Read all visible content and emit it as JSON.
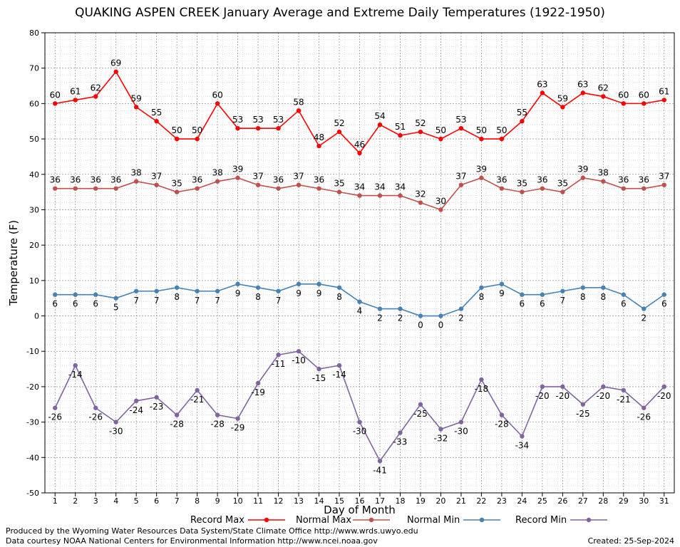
{
  "chart_data": {
    "type": "line",
    "title": "QUAKING ASPEN CREEK January Average and Extreme Daily Temperatures (1922-1950)",
    "xlabel": "Day of Month",
    "ylabel": "Temperature (F)",
    "ylim": [
      -50,
      80
    ],
    "yticks": [
      -50,
      -40,
      -30,
      -20,
      -10,
      0,
      10,
      20,
      30,
      40,
      50,
      60,
      70,
      80
    ],
    "x": [
      1,
      2,
      3,
      4,
      5,
      6,
      7,
      8,
      9,
      10,
      11,
      12,
      13,
      14,
      15,
      16,
      17,
      18,
      19,
      20,
      21,
      22,
      23,
      24,
      25,
      26,
      27,
      28,
      29,
      30,
      31
    ],
    "grid": true,
    "legend_position": "bottom",
    "series": [
      {
        "name": "Record Max",
        "color": "#ff0000",
        "label_pos": "above",
        "values": [
          60,
          61,
          62,
          69,
          59,
          55,
          50,
          50,
          60,
          53,
          53,
          53,
          58,
          48,
          52,
          46,
          54,
          51,
          52,
          50,
          53,
          50,
          50,
          55,
          63,
          59,
          63,
          62,
          60,
          60,
          61
        ]
      },
      {
        "name": "Normal Max",
        "color": "#c0504d",
        "label_pos": "above",
        "values": [
          36,
          36,
          36,
          36,
          38,
          37,
          35,
          36,
          38,
          39,
          37,
          36,
          37,
          36,
          35,
          34,
          34,
          34,
          32,
          30,
          37,
          39,
          36,
          35,
          36,
          35,
          39,
          38,
          36,
          36,
          37
        ]
      },
      {
        "name": "Normal Min",
        "color": "#4682b4",
        "label_pos": "below",
        "values": [
          6,
          6,
          6,
          5,
          7,
          7,
          8,
          7,
          7,
          9,
          8,
          7,
          9,
          9,
          8,
          4,
          2,
          2,
          0,
          0,
          2,
          8,
          9,
          6,
          6,
          7,
          8,
          8,
          6,
          2,
          6
        ]
      },
      {
        "name": "Record Min",
        "color": "#8064a2",
        "label_pos": "below",
        "values": [
          -26,
          -14,
          -26,
          -30,
          -24,
          -23,
          -28,
          -21,
          -28,
          -29,
          -19,
          -11,
          -10,
          -15,
          -14,
          -30,
          -41,
          -33,
          -25,
          -32,
          -30,
          -18,
          -28,
          -34,
          -20,
          -20,
          -25,
          -20,
          -21,
          -26,
          -20
        ]
      }
    ]
  },
  "footer": {
    "produced_by": "Produced by the Wyoming Water Resources Data System/State Climate Office http://www.wrds.uwyo.edu",
    "courtesy": "Data courtesy NOAA National Centers for Environmental Information http://www.ncei.noaa.gov",
    "created": "Created:  25-Sep-2024"
  }
}
